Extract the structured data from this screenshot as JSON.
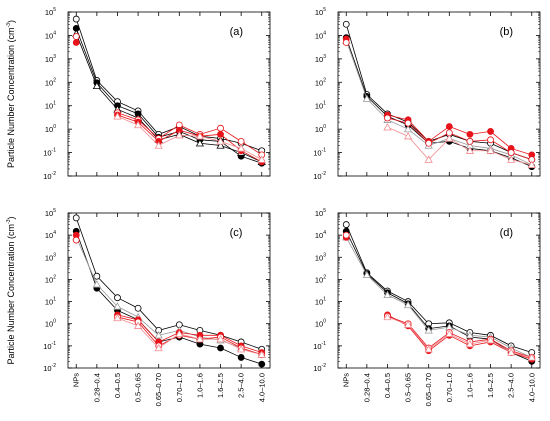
{
  "chart_data": {
    "type": "line",
    "ylabel_prefix": "Particle Number Concentration (cm",
    "ylabel_exp": "-3",
    "ylabel_suffix": ")",
    "y_scale": "log",
    "ylim": [
      0.01,
      100000
    ],
    "y_tick_exponents": [
      -2,
      -1,
      0,
      1,
      2,
      3,
      4,
      5
    ],
    "y_tick_base": "10",
    "categories": [
      "NPs",
      "0.28–0.4",
      "0.4–0.5",
      "0.5–0.65",
      "0.65–0.70",
      "0.70–1.0",
      "1.0–1.6",
      "1.6–2.5",
      "2.5–4.0",
      "4.0–10.0"
    ],
    "series_colors": {
      "black": "#000000",
      "red": "#e8141b",
      "gray": "#9a9a9a",
      "pink": "#f08a8e"
    },
    "panels": [
      {
        "label": "(a)",
        "series": [
          {
            "color": "black",
            "marker": "open-circle",
            "values": [
              50000,
              120,
              15,
              6,
              0.6,
              1.3,
              0.5,
              0.4,
              0.25,
              0.12
            ]
          },
          {
            "color": "black",
            "marker": "filled-circle",
            "values": [
              20000,
              95,
              10,
              4.5,
              0.45,
              0.8,
              0.35,
              0.3,
              0.07,
              0.035
            ]
          },
          {
            "color": "black",
            "marker": "open-triangle",
            "values": [
              12000,
              70,
              7,
              3,
              0.35,
              0.6,
              0.25,
              0.2,
              0.1,
              0.04
            ]
          },
          {
            "color": "red",
            "marker": "open-circle",
            "values": [
              9000,
              null,
              5,
              2.5,
              0.4,
              1.5,
              0.6,
              1.1,
              0.3,
              0.08
            ]
          },
          {
            "color": "red",
            "marker": "filled-circle",
            "values": [
              5000,
              null,
              4,
              2,
              0.3,
              0.9,
              0.5,
              0.6,
              0.12,
              0.04
            ]
          },
          {
            "color": "pink",
            "marker": "open-triangle",
            "values": [
              null,
              null,
              3.5,
              1.5,
              0.2,
              0.55,
              0.5,
              0.3,
              0.15,
              0.05
            ]
          }
        ]
      },
      {
        "label": "(b)",
        "series": [
          {
            "color": "black",
            "marker": "open-circle",
            "values": [
              30000,
              30,
              4.5,
              2,
              0.3,
              0.6,
              0.3,
              0.25,
              0.1,
              0.05
            ]
          },
          {
            "color": "black",
            "marker": "filled-circle",
            "values": [
              8000,
              25,
              3.5,
              1.5,
              0.25,
              0.3,
              0.15,
              0.12,
              0.06,
              0.025
            ]
          },
          {
            "color": "gray",
            "marker": "open-triangle",
            "values": [
              6000,
              20,
              2.5,
              1,
              0.2,
              0.4,
              0.2,
              0.15,
              0.08,
              0.03
            ]
          },
          {
            "color": "red",
            "marker": "filled-circle",
            "values": [
              7000,
              null,
              4,
              2.5,
              0.3,
              1.3,
              0.6,
              0.8,
              0.15,
              0.08
            ]
          },
          {
            "color": "red",
            "marker": "open-circle",
            "values": [
              5000,
              null,
              3,
              1.8,
              0.25,
              0.7,
              0.3,
              0.35,
              0.1,
              0.05
            ]
          },
          {
            "color": "pink",
            "marker": "open-triangle",
            "values": [
              null,
              null,
              1.2,
              0.5,
              0.05,
              0.4,
              0.12,
              0.12,
              0.05,
              0.03
            ]
          }
        ]
      },
      {
        "label": "(c)",
        "series": [
          {
            "color": "black",
            "marker": "open-circle",
            "values": [
              60000,
              140,
              15,
              5,
              0.5,
              0.9,
              0.5,
              0.3,
              0.15,
              0.07
            ]
          },
          {
            "color": "black",
            "marker": "filled-circle",
            "values": [
              15000,
              40,
              4,
              1.5,
              0.15,
              0.25,
              0.12,
              0.08,
              0.03,
              0.015
            ]
          },
          {
            "color": "gray",
            "marker": "open-triangle",
            "values": [
              8000,
              60,
              6,
              2,
              0.3,
              0.5,
              0.25,
              0.18,
              0.08,
              0.04
            ]
          },
          {
            "color": "red",
            "marker": "filled-circle",
            "values": [
              10000,
              null,
              2.5,
              1.5,
              0.15,
              0.4,
              0.3,
              0.3,
              0.1,
              0.05
            ]
          },
          {
            "color": "red",
            "marker": "open-circle",
            "values": [
              6000,
              null,
              2,
              1.2,
              0.1,
              0.3,
              0.2,
              0.25,
              0.08,
              0.04
            ]
          },
          {
            "color": "pink",
            "marker": "open-triangle",
            "values": [
              null,
              null,
              1.8,
              0.8,
              0.08,
              0.35,
              0.2,
              0.2,
              0.07,
              0.04
            ]
          }
        ]
      },
      {
        "label": "(d)",
        "series": [
          {
            "color": "black",
            "marker": "open-circle",
            "values": [
              30000,
              200,
              30,
              10,
              1,
              1.1,
              0.4,
              0.3,
              0.1,
              0.05
            ]
          },
          {
            "color": "black",
            "marker": "filled-circle",
            "values": [
              15000,
              180,
              25,
              8,
              0.6,
              0.8,
              0.25,
              0.2,
              0.05,
              0.02
            ]
          },
          {
            "color": "gray",
            "marker": "open-triangle",
            "values": [
              8000,
              160,
              20,
              7,
              0.5,
              0.7,
              0.3,
              0.25,
              0.08,
              0.03
            ]
          },
          {
            "color": "red",
            "marker": "filled-circle",
            "values": [
              8000,
              null,
              2.5,
              0.8,
              0.06,
              0.3,
              0.1,
              0.15,
              0.05,
              0.025
            ]
          },
          {
            "color": "red",
            "marker": "open-circle",
            "values": [
              10000,
              null,
              2.2,
              1,
              0.08,
              0.4,
              0.15,
              0.2,
              0.06,
              0.03
            ]
          },
          {
            "color": "pink",
            "marker": "open-triangle",
            "values": [
              null,
              null,
              2,
              0.9,
              0.07,
              0.35,
              0.12,
              0.18,
              0.05,
              0.03
            ]
          }
        ]
      }
    ]
  }
}
